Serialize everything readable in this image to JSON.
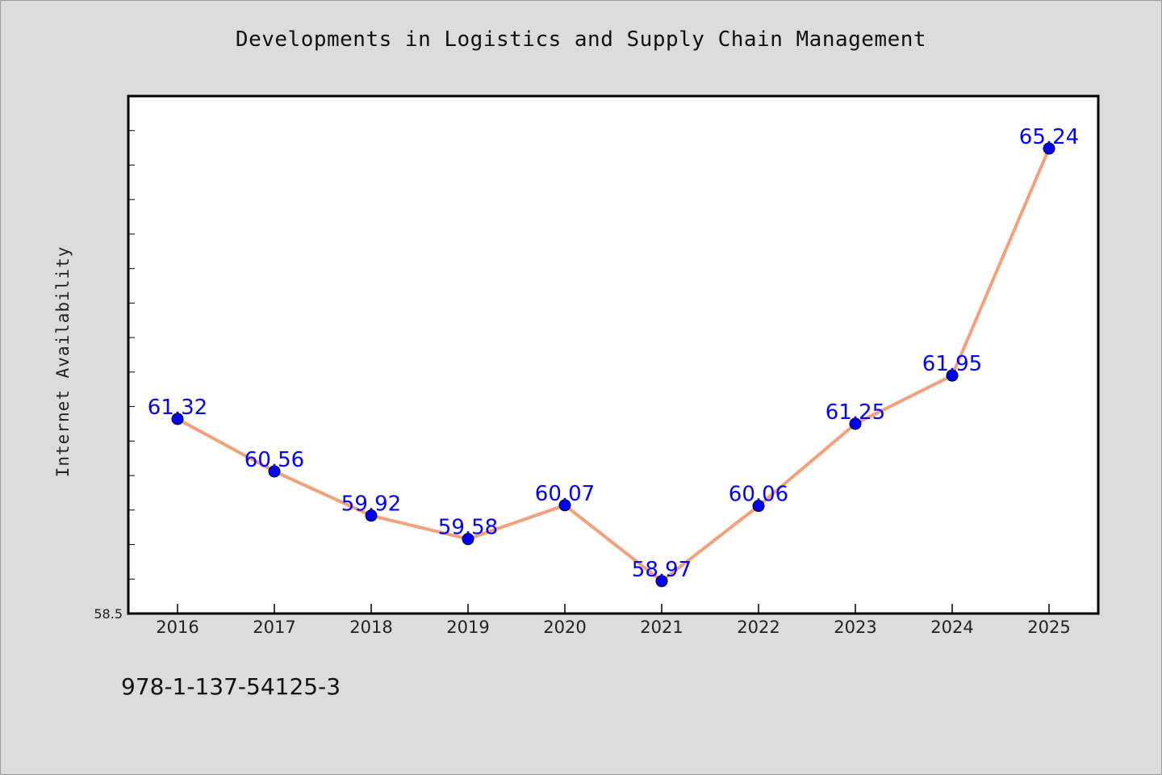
{
  "chart_data": {
    "type": "line",
    "title": "Developments in Logistics and Supply Chain Management",
    "xlabel": "",
    "ylabel": "Internet Availability",
    "categories": [
      "2016",
      "2017",
      "2018",
      "2019",
      "2020",
      "2021",
      "2022",
      "2023",
      "2024",
      "2025"
    ],
    "series": [
      {
        "values": [
          61.32,
          60.56,
          59.92,
          59.58,
          60.07,
          58.97,
          60.06,
          61.25,
          61.95,
          65.24
        ],
        "labels": [
          "61.32",
          "60.56",
          "59.92",
          "59.58",
          "60.07",
          "58.97",
          "60.06",
          "61.25",
          "61.95",
          "65.24"
        ]
      }
    ],
    "ylim": [
      58.5,
      66
    ],
    "y_tick_label": "58.5",
    "grid": false,
    "legend": "none",
    "colors": {
      "line": "#f4a07a",
      "marker": "#0000ff",
      "labels": "#0000ff",
      "plot_background": "#ffffff",
      "figure_background": "#dcdcdc"
    }
  },
  "footer": {
    "code": "978-1-137-54125-3"
  }
}
